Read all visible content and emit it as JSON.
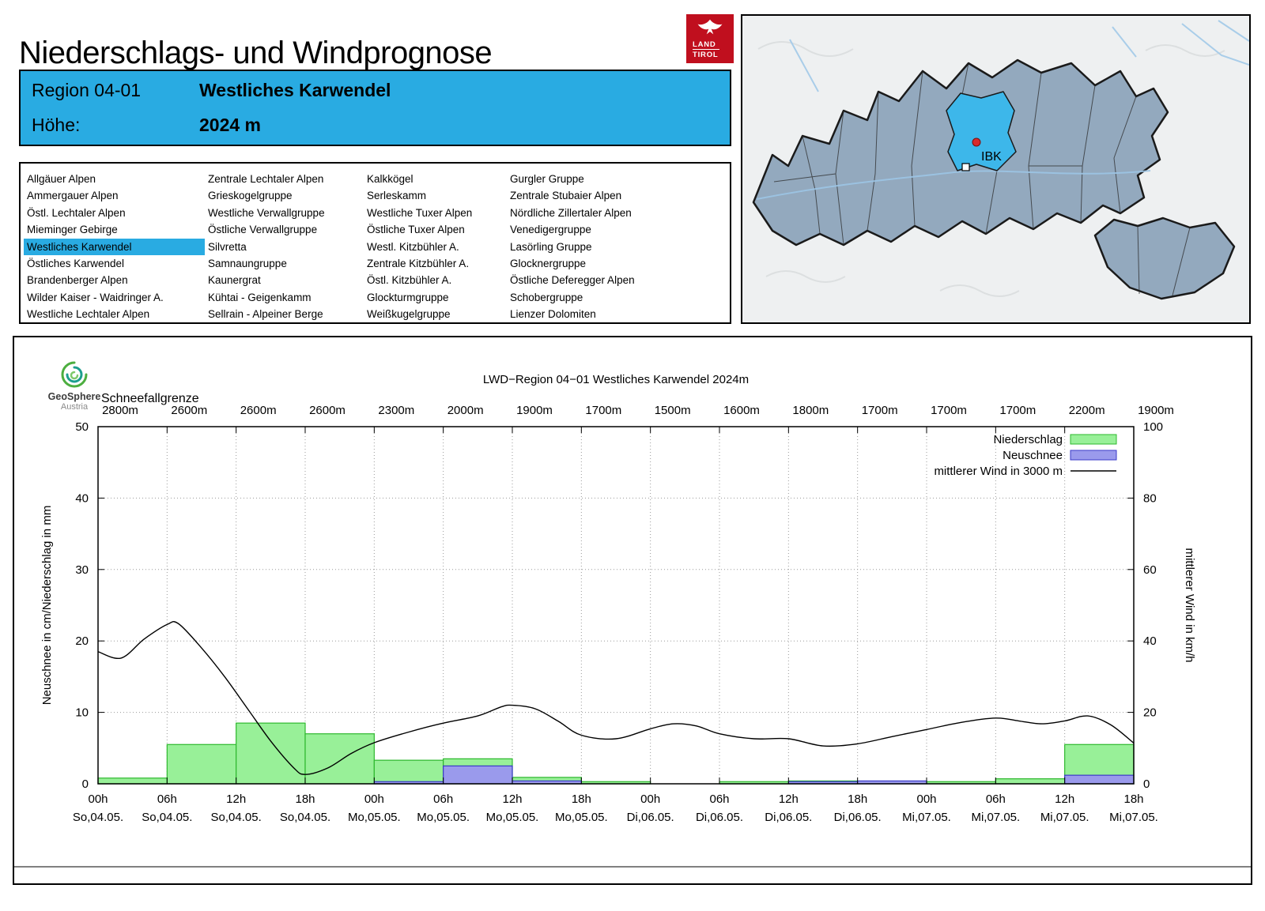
{
  "page": {
    "title": "Niederschlags- und Windprognose"
  },
  "tirol_logo": {
    "line1": "LAND",
    "line2": "TIROL"
  },
  "region_header": {
    "region_label": "Region 04-01",
    "region_name": "Westliches Karwendel",
    "altitude_label": "Höhe:",
    "altitude_value": "2024 m"
  },
  "region_list": {
    "selected": "Westliches Karwendel",
    "columns": [
      [
        "Allgäuer Alpen",
        "Ammergauer Alpen",
        "Östl. Lechtaler Alpen",
        "Mieminger Gebirge",
        "Westliches Karwendel",
        "Östliches Karwendel",
        "Brandenberger Alpen",
        "Wilder Kaiser - Waidringer A.",
        "Westliche Lechtaler Alpen"
      ],
      [
        "Zentrale Lechtaler Alpen",
        "Grieskogelgruppe",
        "Westliche Verwallgruppe",
        "Östliche Verwallgruppe",
        "Silvretta",
        "Samnaungruppe",
        "Kaunergrat",
        "Kühtai - Geigenkamm",
        "Sellrain - Alpeiner Berge"
      ],
      [
        "Kalkkögel",
        "Serleskamm",
        "Westliche Tuxer Alpen",
        "Östliche Tuxer Alpen",
        "Westl. Kitzbühler A.",
        "Zentrale Kitzbühler A.",
        "Östl. Kitzbühler A.",
        "Glockturmgruppe",
        "Weißkugelgruppe"
      ],
      [
        "Gurgler Gruppe",
        "Zentrale Stubaier Alpen",
        "Nördliche Zillertaler Alpen",
        "Venedigergruppe",
        "Lasörling Gruppe",
        "Glocknergruppe",
        "Östliche Deferegger Alpen",
        "Schobergruppe",
        "Lienzer Dolomiten"
      ]
    ]
  },
  "map": {
    "marker_label": "IBK"
  },
  "geosphere": {
    "line1": "GeoSphere",
    "line2": "Austria"
  },
  "chart_data": {
    "type": "bar",
    "title": "LWD−Region 04−01 Westliches Karwendel 2024m",
    "snowline_label": "Schneefallgrenze",
    "snowline_values": [
      "2800m",
      "2600m",
      "2600m",
      "2600m",
      "2300m",
      "2000m",
      "1900m",
      "1700m",
      "1500m",
      "1600m",
      "1800m",
      "1700m",
      "1700m",
      "1700m",
      "2200m",
      "1900m"
    ],
    "ylabel_left": "Neuschnee in cm/Niederschlag in mm",
    "ylabel_right": "mittlerer Wind in km/h",
    "ylim_left": [
      0,
      50
    ],
    "ylim_right": [
      0,
      100
    ],
    "x_hours_total": 90,
    "bar_width_hours": 6,
    "grid": true,
    "x_ticks": [
      {
        "hour": 0,
        "time": "00h",
        "date": "So,04.05."
      },
      {
        "hour": 6,
        "time": "06h",
        "date": "So,04.05."
      },
      {
        "hour": 12,
        "time": "12h",
        "date": "So,04.05."
      },
      {
        "hour": 18,
        "time": "18h",
        "date": "So,04.05."
      },
      {
        "hour": 24,
        "time": "00h",
        "date": "Mo,05.05."
      },
      {
        "hour": 30,
        "time": "06h",
        "date": "Mo,05.05."
      },
      {
        "hour": 36,
        "time": "12h",
        "date": "Mo,05.05."
      },
      {
        "hour": 42,
        "time": "18h",
        "date": "Mo,05.05."
      },
      {
        "hour": 48,
        "time": "00h",
        "date": "Di,06.05."
      },
      {
        "hour": 54,
        "time": "06h",
        "date": "Di,06.05."
      },
      {
        "hour": 60,
        "time": "12h",
        "date": "Di,06.05."
      },
      {
        "hour": 66,
        "time": "18h",
        "date": "Di,06.05."
      },
      {
        "hour": 72,
        "time": "00h",
        "date": "Mi,07.05."
      },
      {
        "hour": 78,
        "time": "06h",
        "date": "Mi,07.05."
      },
      {
        "hour": 84,
        "time": "12h",
        "date": "Mi,07.05."
      },
      {
        "hour": 90,
        "time": "18h",
        "date": "Mi,07.05."
      }
    ],
    "legend": [
      {
        "label": "Niederschlag",
        "type": "box",
        "fill": "#98f098",
        "border": "#2eb82e"
      },
      {
        "label": "Neuschnee",
        "type": "box",
        "fill": "#9a9aec",
        "border": "#3a3ac8"
      },
      {
        "label": "mittlerer Wind in 3000 m",
        "type": "line",
        "color": "#000000"
      }
    ],
    "series": [
      {
        "name": "Niederschlag",
        "unit": "mm",
        "axis": "left",
        "fill": "#98f098",
        "border": "#2eb82e",
        "bars": [
          {
            "start_hour": 0,
            "value": 0.8
          },
          {
            "start_hour": 6,
            "value": 5.5
          },
          {
            "start_hour": 12,
            "value": 8.5
          },
          {
            "start_hour": 18,
            "value": 7.0
          },
          {
            "start_hour": 24,
            "value": 3.3
          },
          {
            "start_hour": 30,
            "value": 3.5
          },
          {
            "start_hour": 36,
            "value": 0.9
          },
          {
            "start_hour": 42,
            "value": 0.3
          },
          {
            "start_hour": 54,
            "value": 0.3
          },
          {
            "start_hour": 60,
            "value": 0.4
          },
          {
            "start_hour": 72,
            "value": 0.3
          },
          {
            "start_hour": 78,
            "value": 0.7
          },
          {
            "start_hour": 84,
            "value": 5.5
          }
        ]
      },
      {
        "name": "Neuschnee",
        "unit": "cm",
        "axis": "left",
        "fill": "#9a9aec",
        "border": "#3a3ac8",
        "bars": [
          {
            "start_hour": 24,
            "value": 0.3
          },
          {
            "start_hour": 30,
            "value": 2.5
          },
          {
            "start_hour": 36,
            "value": 0.4
          },
          {
            "start_hour": 60,
            "value": 0.3
          },
          {
            "start_hour": 66,
            "value": 0.4
          },
          {
            "start_hour": 84,
            "value": 1.2
          }
        ]
      },
      {
        "name": "mittlerer Wind in 3000 m",
        "unit": "km/h",
        "axis": "right",
        "color": "#000000",
        "points": [
          [
            0,
            37
          ],
          [
            2,
            35.2
          ],
          [
            4,
            40.5
          ],
          [
            6,
            44.6
          ],
          [
            7,
            44.8
          ],
          [
            9,
            38
          ],
          [
            11,
            30
          ],
          [
            13,
            21
          ],
          [
            15,
            12
          ],
          [
            17,
            4.5
          ],
          [
            18,
            2.6
          ],
          [
            20,
            4.5
          ],
          [
            22,
            8.5
          ],
          [
            24,
            11.5
          ],
          [
            27,
            14.5
          ],
          [
            30,
            17
          ],
          [
            33,
            19
          ],
          [
            35,
            21.5
          ],
          [
            36,
            22
          ],
          [
            38,
            21
          ],
          [
            40,
            17.5
          ],
          [
            42,
            13.6
          ],
          [
            45,
            12.6
          ],
          [
            48,
            15.4
          ],
          [
            50,
            16.8
          ],
          [
            52,
            16.2
          ],
          [
            54,
            14
          ],
          [
            57,
            12.6
          ],
          [
            60,
            12.6
          ],
          [
            63,
            10.6
          ],
          [
            66,
            11.2
          ],
          [
            69,
            13.2
          ],
          [
            72,
            15.2
          ],
          [
            75,
            17.2
          ],
          [
            78,
            18.4
          ],
          [
            80,
            17.6
          ],
          [
            82,
            16.8
          ],
          [
            84,
            17.6
          ],
          [
            86,
            19
          ],
          [
            88,
            16.5
          ],
          [
            90,
            11.4
          ]
        ]
      }
    ]
  }
}
